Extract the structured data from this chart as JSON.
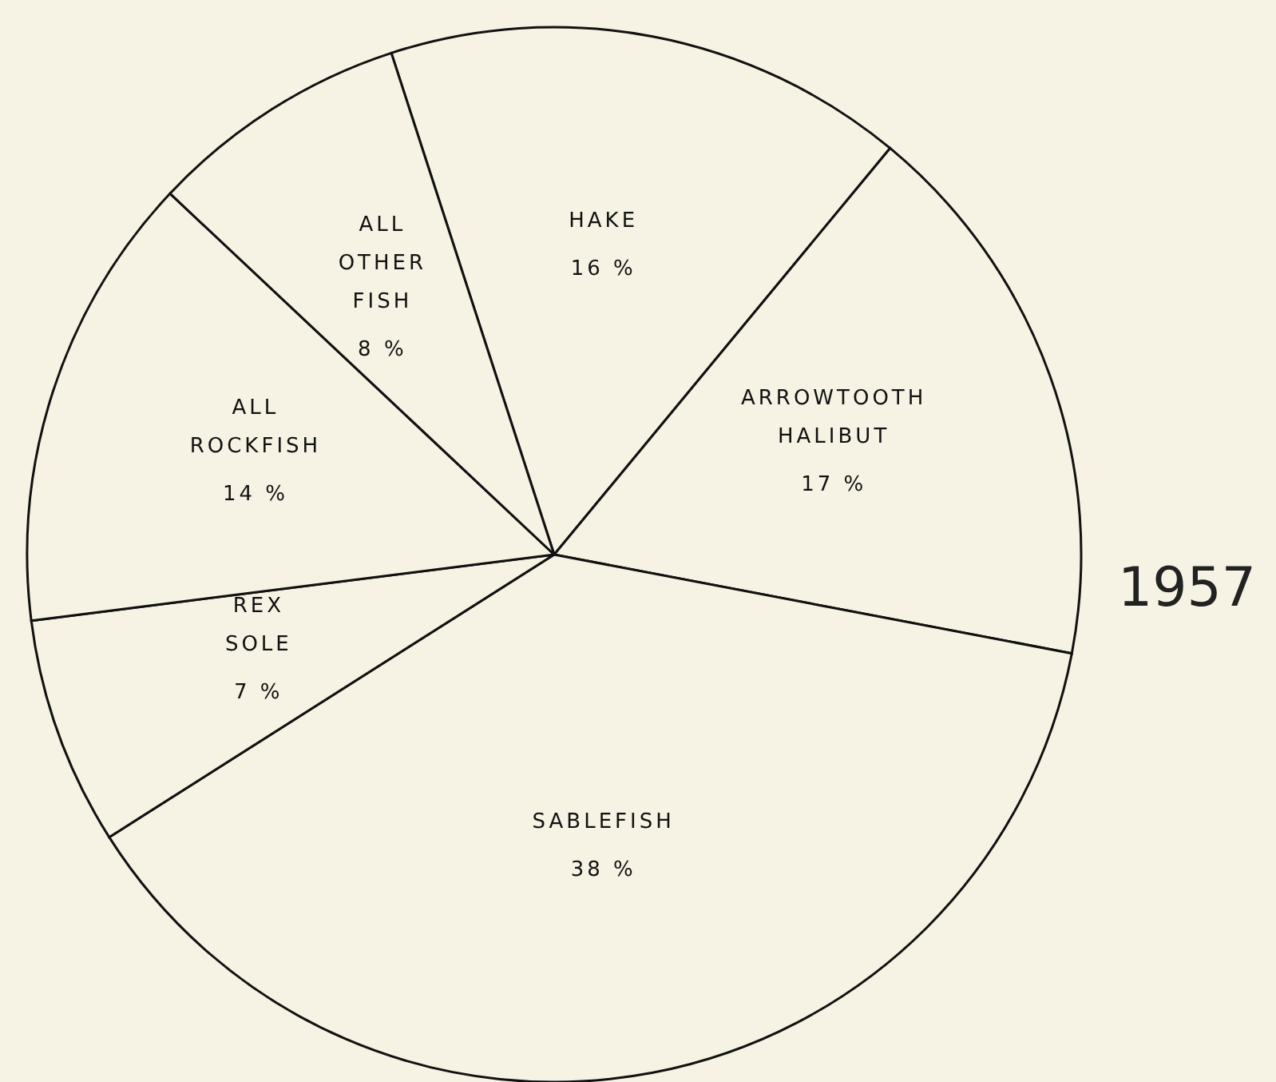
{
  "chart_data": {
    "type": "pie",
    "title": "1957",
    "categories": [
      "HAKE",
      "ARROWTOOTH HALIBUT",
      "SABLEFISH",
      "REX SOLE",
      "ALL ROCKFISH",
      "ALL OTHER FISH"
    ],
    "values": [
      16,
      17,
      38,
      7,
      14,
      8
    ],
    "value_labels": [
      "16 %",
      "17 %",
      "38 %",
      "7 %",
      "14 %",
      "8 %"
    ],
    "colors": [
      "#f6f3e4",
      "#f6f3e4",
      "#f6f3e4",
      "#f6f3e4",
      "#f6f3e4",
      "#f6f3e4"
    ]
  }
}
